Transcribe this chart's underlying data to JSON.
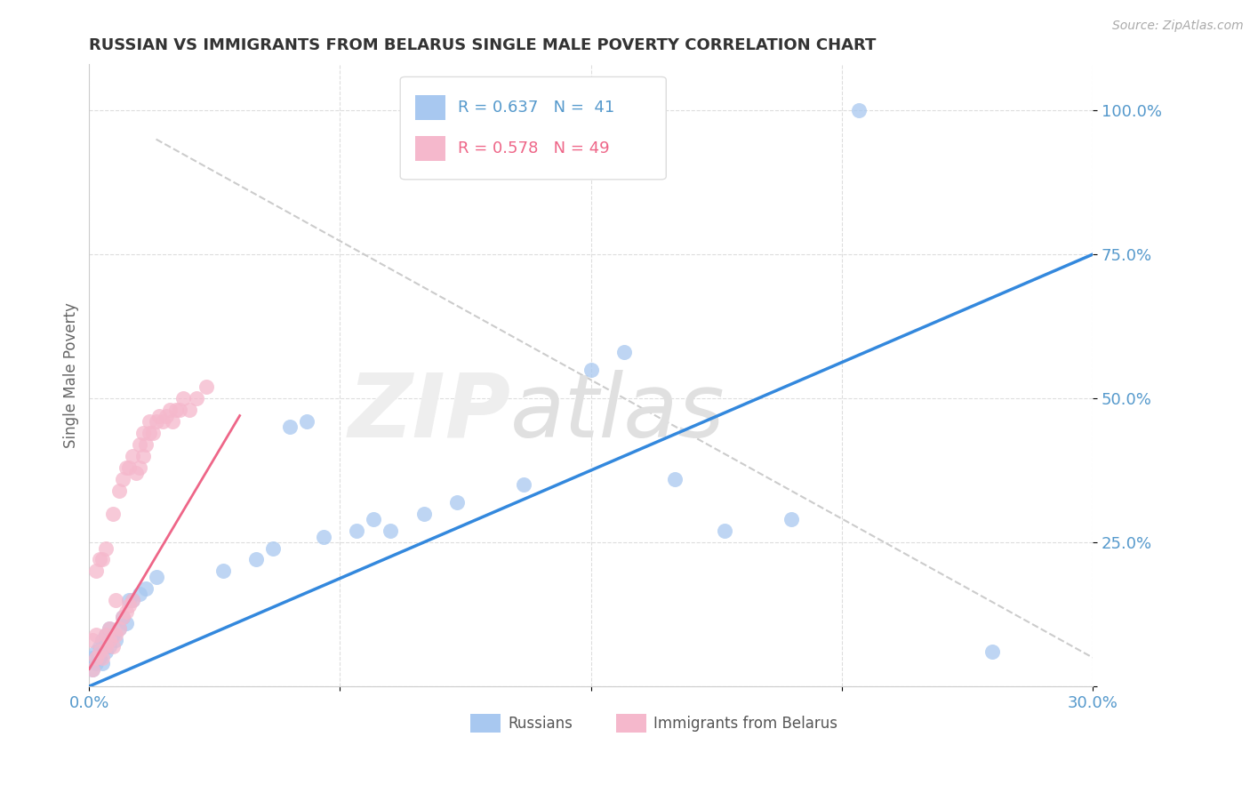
{
  "title": "RUSSIAN VS IMMIGRANTS FROM BELARUS SINGLE MALE POVERTY CORRELATION CHART",
  "source": "Source: ZipAtlas.com",
  "ylabel": "Single Male Poverty",
  "y_ticks": [
    0.0,
    0.25,
    0.5,
    0.75,
    1.0
  ],
  "y_tick_labels": [
    "",
    "25.0%",
    "50.0%",
    "75.0%",
    "100.0%"
  ],
  "x_min": 0.0,
  "x_max": 0.3,
  "y_min": 0.0,
  "y_max": 1.08,
  "legend_r_blue": "R = 0.637",
  "legend_n_blue": "N =  41",
  "legend_r_pink": "R = 0.578",
  "legend_n_pink": "N = 49",
  "blue_color": "#a8c8f0",
  "pink_color": "#f5b8cc",
  "blue_line_color": "#3388dd",
  "pink_line_color": "#ee6688",
  "dashed_line_color": "#cccccc",
  "background_color": "#ffffff",
  "grid_color": "#dddddd",
  "axis_label_color": "#5599cc",
  "title_color": "#333333",
  "russians_x": [
    0.001,
    0.001,
    0.002,
    0.002,
    0.003,
    0.003,
    0.004,
    0.004,
    0.005,
    0.005,
    0.006,
    0.006,
    0.007,
    0.008,
    0.009,
    0.01,
    0.011,
    0.012,
    0.013,
    0.015,
    0.017,
    0.02,
    0.04,
    0.05,
    0.055,
    0.06,
    0.065,
    0.07,
    0.08,
    0.085,
    0.09,
    0.1,
    0.11,
    0.13,
    0.15,
    0.16,
    0.175,
    0.19,
    0.21,
    0.23,
    0.27
  ],
  "russians_y": [
    0.03,
    0.05,
    0.04,
    0.06,
    0.05,
    0.07,
    0.04,
    0.08,
    0.06,
    0.09,
    0.07,
    0.1,
    0.09,
    0.08,
    0.1,
    0.12,
    0.11,
    0.15,
    0.15,
    0.16,
    0.17,
    0.19,
    0.2,
    0.22,
    0.24,
    0.45,
    0.46,
    0.26,
    0.27,
    0.29,
    0.27,
    0.3,
    0.32,
    0.35,
    0.55,
    0.58,
    0.36,
    0.27,
    0.29,
    1.0,
    0.06
  ],
  "belarus_x": [
    0.001,
    0.001,
    0.002,
    0.002,
    0.002,
    0.003,
    0.003,
    0.004,
    0.004,
    0.005,
    0.005,
    0.005,
    0.006,
    0.006,
    0.007,
    0.007,
    0.008,
    0.008,
    0.009,
    0.009,
    0.01,
    0.01,
    0.011,
    0.011,
    0.012,
    0.012,
    0.013,
    0.013,
    0.014,
    0.015,
    0.015,
    0.016,
    0.016,
    0.017,
    0.018,
    0.018,
    0.019,
    0.02,
    0.021,
    0.022,
    0.023,
    0.024,
    0.025,
    0.026,
    0.027,
    0.028,
    0.03,
    0.032,
    0.035
  ],
  "belarus_y": [
    0.03,
    0.08,
    0.05,
    0.09,
    0.2,
    0.06,
    0.22,
    0.05,
    0.22,
    0.07,
    0.09,
    0.24,
    0.08,
    0.1,
    0.07,
    0.3,
    0.09,
    0.15,
    0.1,
    0.34,
    0.12,
    0.36,
    0.13,
    0.38,
    0.14,
    0.38,
    0.15,
    0.4,
    0.37,
    0.38,
    0.42,
    0.4,
    0.44,
    0.42,
    0.44,
    0.46,
    0.44,
    0.46,
    0.47,
    0.46,
    0.47,
    0.48,
    0.46,
    0.48,
    0.48,
    0.5,
    0.48,
    0.5,
    0.52
  ],
  "blue_line_x": [
    0.0,
    0.3
  ],
  "blue_line_y": [
    0.0,
    0.75
  ],
  "pink_line_x": [
    0.0,
    0.045
  ],
  "pink_line_y": [
    0.03,
    0.47
  ],
  "diag_line_x": [
    0.02,
    0.3
  ],
  "diag_line_y": [
    0.95,
    0.05
  ]
}
